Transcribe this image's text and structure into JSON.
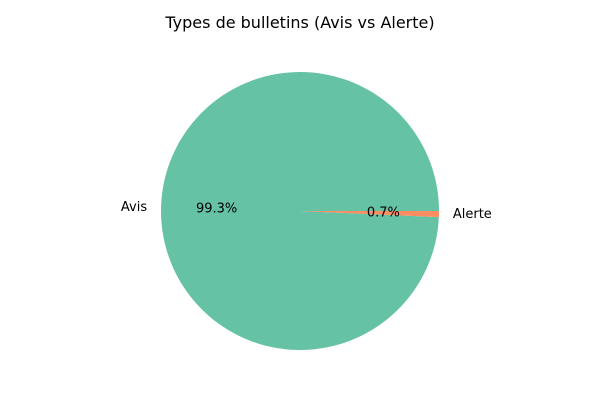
{
  "chart_data": {
    "type": "pie",
    "title": "Types de bulletins (Avis vs Alerte)",
    "labels": [
      "Avis",
      "Alerte"
    ],
    "values": [
      99.3,
      0.7
    ],
    "percent_labels": [
      "99.3%",
      "0.7%"
    ],
    "colors": [
      "#66c2a5",
      "#fc8d62"
    ],
    "start_angle_deg": 0,
    "direction": "counterclockwise",
    "legend": "none"
  }
}
